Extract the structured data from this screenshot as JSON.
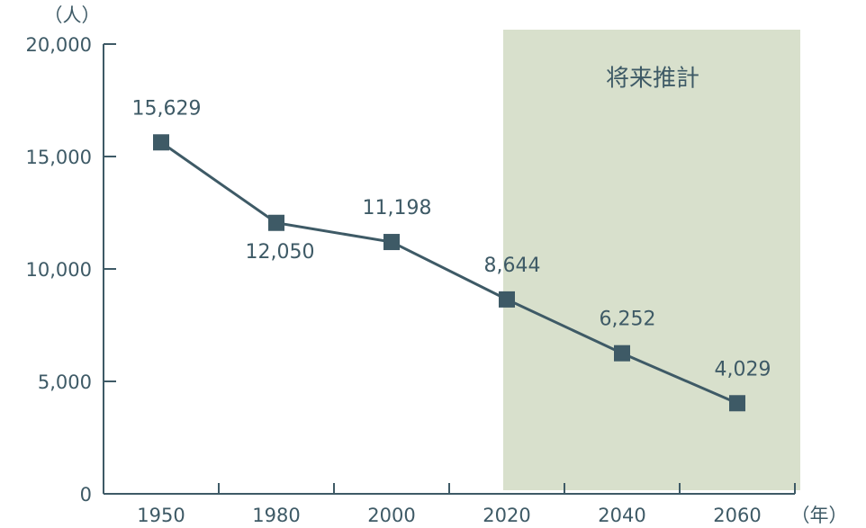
{
  "chart_data": {
    "type": "line",
    "y_unit": "（人）",
    "x_unit": "（年）",
    "categories": [
      "1950",
      "1980",
      "2000",
      "2020",
      "2040",
      "2060"
    ],
    "values": [
      15629,
      12050,
      11198,
      8644,
      6252,
      4029
    ],
    "value_labels": [
      "15,629",
      "12,050",
      "11,198",
      "8,644",
      "6,252",
      "4,029"
    ],
    "color": "#3e5a66",
    "ylim": [
      0,
      20000
    ],
    "yticks": [
      0,
      {
        "value": 5000,
        "label": "5,000"
      },
      {
        "value": 10000,
        "label": "10,000"
      },
      {
        "value": 15000,
        "label": "15,000"
      },
      {
        "value": 20000,
        "label": "20,000"
      }
    ],
    "highlight": {
      "label": "将来推計",
      "start": "2020",
      "color": "#d8e0cc"
    }
  }
}
